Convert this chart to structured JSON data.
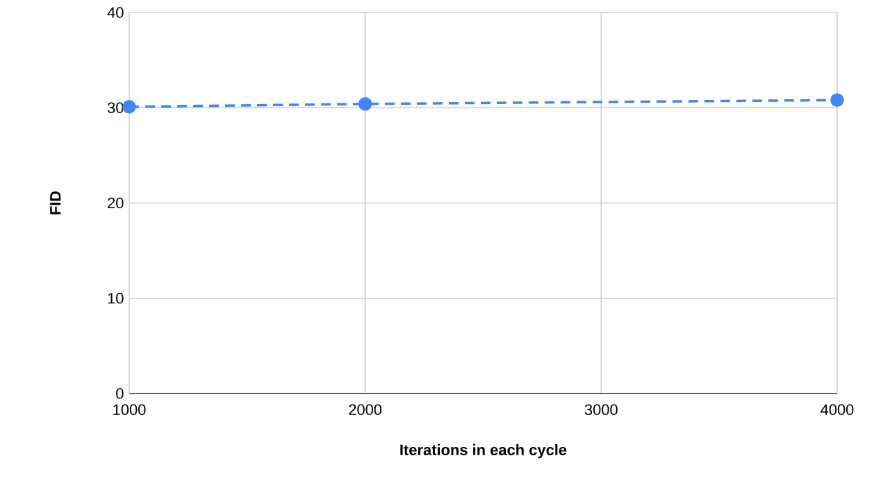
{
  "chart_data": {
    "type": "line",
    "xlabel": "Iterations in each cycle",
    "ylabel": "FID",
    "x": [
      1000,
      2000,
      4000
    ],
    "series": [
      {
        "color": "#4285f4",
        "values": [
          30.1,
          30.4,
          30.8
        ]
      }
    ],
    "xlim": [
      1000,
      4000
    ],
    "xticks": [
      1000,
      2000,
      3000,
      4000
    ],
    "ylim": [
      0,
      40
    ],
    "yticks": [
      0,
      10,
      20,
      30,
      40
    ],
    "grid": true,
    "marker": "circle",
    "line_style": "dashed"
  }
}
